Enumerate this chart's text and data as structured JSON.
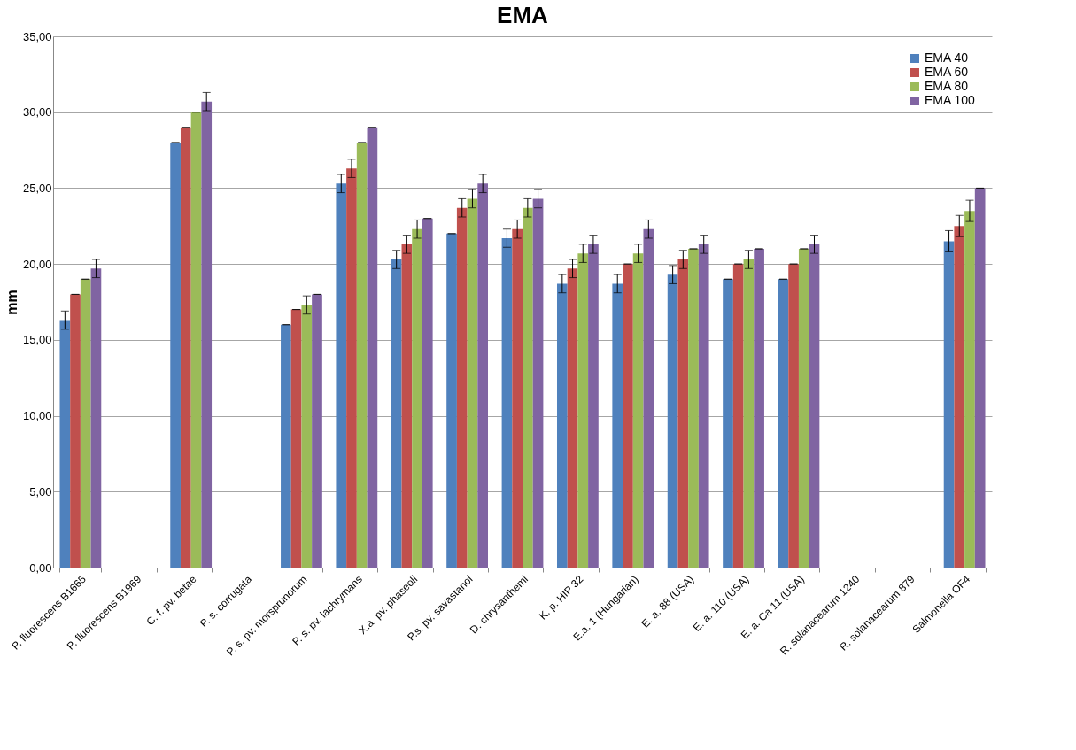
{
  "chart_data": {
    "type": "bar",
    "title": "EMA",
    "ylabel": "mm",
    "categories": [
      "P. fluorescens B1665",
      "P. fluorescens B1969",
      "C. f. pv. betae",
      "P. s. corrugata",
      "P. s. pv. morsprunorum",
      "P. s. pv. lachrymans",
      "X.a. pv. phaseoli",
      "P.s. pv. savastanoi",
      "D. chrysanthemi",
      "K. p. HIP 32",
      "E.a. 1 (Hungarian)",
      "E. a. 88 (USA)",
      "E. a. 110 (USA)",
      "E. a. Ca 11 (USA)",
      "R. solanacearum 1240",
      "R. solanacearum 879",
      "Salmonella OF4"
    ],
    "series": [
      {
        "name": "EMA 40",
        "color": "#4f81bd",
        "values": [
          16.3,
          null,
          28,
          null,
          16,
          25.3,
          20.3,
          22,
          21.7,
          18.7,
          18.7,
          19.3,
          19,
          19,
          null,
          null,
          21.5
        ],
        "errors": [
          0.6,
          null,
          0,
          null,
          0,
          0.6,
          0.6,
          0,
          0.6,
          0.6,
          0.6,
          0.6,
          0,
          0,
          null,
          null,
          0.7
        ]
      },
      {
        "name": "EMA 60",
        "color": "#c0504d",
        "values": [
          18,
          null,
          29,
          null,
          17,
          26.3,
          21.3,
          23.7,
          22.3,
          19.7,
          20,
          20.3,
          20,
          20,
          null,
          null,
          22.5
        ],
        "errors": [
          0,
          null,
          0,
          null,
          0,
          0.6,
          0.6,
          0.6,
          0.6,
          0.6,
          0,
          0.6,
          0,
          0,
          null,
          null,
          0.7
        ]
      },
      {
        "name": "EMA 80",
        "color": "#9bbb59",
        "values": [
          19,
          null,
          30,
          null,
          17.3,
          28,
          22.3,
          24.3,
          23.7,
          20.7,
          20.7,
          21,
          20.3,
          21,
          null,
          null,
          23.5
        ],
        "errors": [
          0,
          null,
          0,
          null,
          0.6,
          0,
          0.6,
          0.6,
          0.6,
          0.6,
          0.6,
          0,
          0.6,
          0,
          null,
          null,
          0.7
        ]
      },
      {
        "name": "EMA 100",
        "color": "#8064a2",
        "values": [
          19.7,
          null,
          30.7,
          null,
          18,
          29,
          23,
          25.3,
          24.3,
          21.3,
          22.3,
          21.3,
          21,
          21.3,
          null,
          null,
          25
        ],
        "errors": [
          0.6,
          null,
          0.6,
          null,
          0,
          0,
          0,
          0.6,
          0.6,
          0.6,
          0.6,
          0.6,
          0,
          0.6,
          null,
          null,
          0
        ]
      }
    ],
    "ylim": [
      0,
      35
    ],
    "yticks": [
      {
        "value": 0,
        "label": "0,00"
      },
      {
        "value": 5,
        "label": "5,00"
      },
      {
        "value": 10,
        "label": "10,00"
      },
      {
        "value": 15,
        "label": "15,00"
      },
      {
        "value": 20,
        "label": "20,00"
      },
      {
        "value": 25,
        "label": "25,00"
      },
      {
        "value": 30,
        "label": "30,00"
      },
      {
        "value": 35,
        "label": "35,00"
      }
    ],
    "grid": "y",
    "legend": "top right"
  }
}
